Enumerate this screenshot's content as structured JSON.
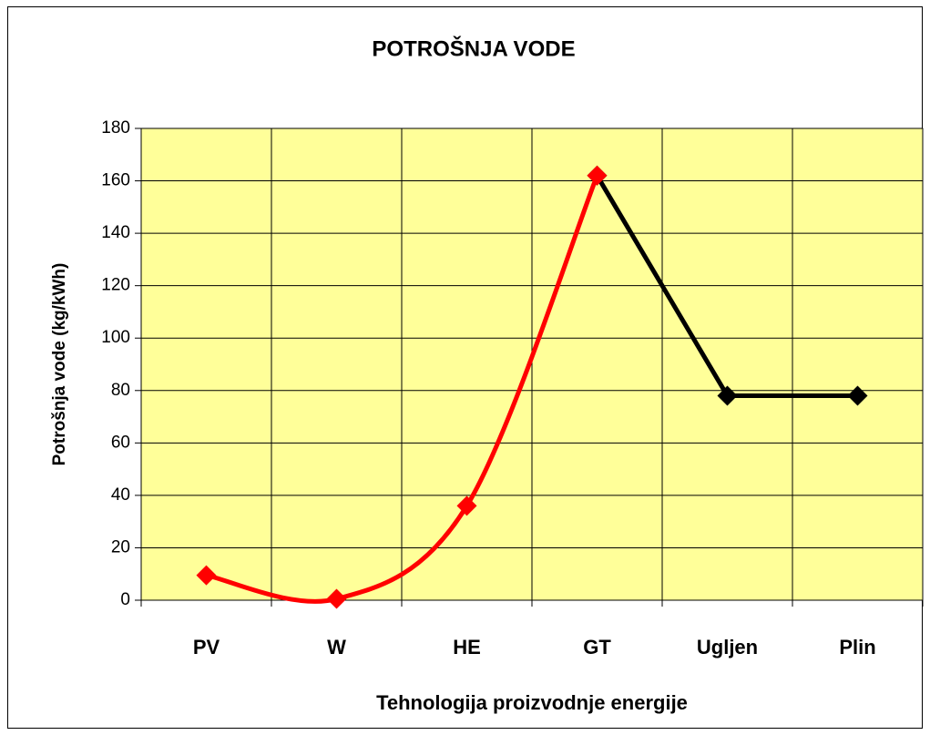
{
  "chart_data": {
    "type": "line",
    "title": "POTROŠNJA VODE",
    "x_label": "Tehnologija proizvodnje energije",
    "y_label": "Potrošnja vode (kg/kWh)",
    "categories": [
      "PV",
      "W",
      "HE",
      "GT",
      "Ugljen",
      "Plin"
    ],
    "series": [
      {
        "color": "#000000",
        "values": [
          null,
          null,
          null,
          162,
          78,
          78
        ],
        "smooth": false
      },
      {
        "color": "#ff0000",
        "values": [
          9.5,
          0.5,
          36,
          162,
          null,
          null
        ],
        "smooth": true
      }
    ],
    "ylim": [
      0,
      180
    ],
    "yticks": [
      0,
      20,
      40,
      60,
      80,
      100,
      120,
      140,
      160,
      180
    ],
    "grid": true,
    "plot_background": "#ffff99"
  }
}
